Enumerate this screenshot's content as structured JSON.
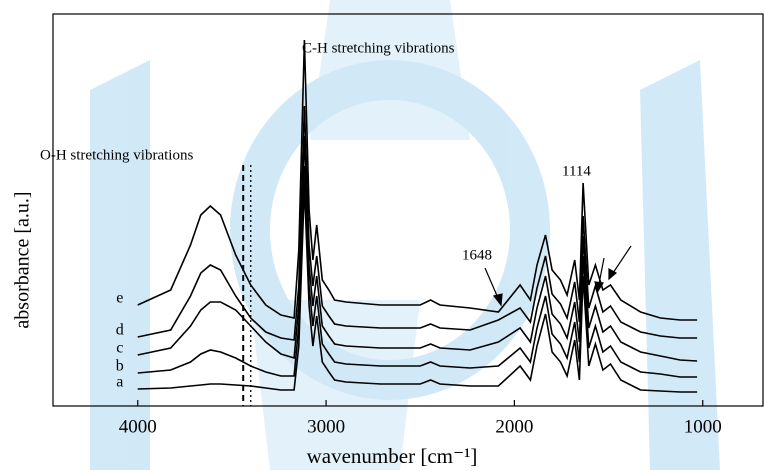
{
  "chart_data": {
    "type": "line",
    "x_label": "wavenumber [cm⁻¹]",
    "y_label": "absorbance [a.u.]",
    "annotations": [
      "C-H stretching vibrations",
      "O-H stretching vibrations",
      "1114",
      "1648"
    ],
    "xlim": [
      4450,
      680
    ],
    "xticks": [
      4000,
      3000,
      2000,
      1000
    ],
    "ylim": [
      0,
      392
    ],
    "vlines": [
      {
        "x": 3440,
        "style": "dashed"
      },
      {
        "x": 3400,
        "style": "dotted"
      }
    ],
    "x": [
      4000,
      3825,
      3720,
      3665,
      3615,
      3560,
      3480,
      3400,
      3320,
      3240,
      3170,
      3145,
      3115,
      3090,
      3070,
      3050,
      3020,
      2985,
      2955,
      2895,
      2710,
      2500,
      2445,
      2395,
      2235,
      2085,
      1970,
      1915,
      1880,
      1835,
      1800,
      1755,
      1720,
      1680,
      1655,
      1635,
      1605,
      1570,
      1530,
      1490,
      1435,
      1330,
      1225,
      1120,
      1030
    ],
    "series": [
      {
        "name": "a",
        "color": "#000000",
        "values": [
          17,
          18,
          20,
          21,
          22,
          22,
          21,
          20,
          18,
          16,
          16,
          60,
          220,
          100,
          60,
          90,
          44,
          34,
          26,
          24,
          22,
          22,
          26,
          22,
          20,
          20,
          40,
          26,
          60,
          92,
          54,
          44,
          30,
          66,
          26,
          130,
          40,
          62,
          36,
          42,
          26,
          16,
          15,
          14,
          14
        ]
      },
      {
        "name": "b",
        "color": "#000000",
        "values": [
          33,
          36,
          44,
          52,
          56,
          54,
          48,
          40,
          34,
          30,
          30,
          80,
          240,
          120,
          80,
          110,
          62,
          52,
          44,
          42,
          40,
          40,
          44,
          40,
          38,
          40,
          58,
          44,
          78,
          110,
          72,
          62,
          48,
          84,
          44,
          150,
          58,
          80,
          54,
          60,
          44,
          34,
          32,
          29,
          29
        ]
      },
      {
        "name": "c",
        "color": "#000000",
        "values": [
          51,
          58,
          80,
          96,
          104,
          104,
          96,
          80,
          64,
          52,
          48,
          100,
          270,
          140,
          100,
          130,
          80,
          70,
          62,
          60,
          58,
          58,
          62,
          58,
          56,
          64,
          78,
          64,
          98,
          130,
          92,
          82,
          68,
          104,
          64,
          170,
          78,
          100,
          74,
          80,
          64,
          54,
          50,
          46,
          45
        ]
      },
      {
        "name": "d",
        "color": "#000000",
        "values": [
          69,
          76,
          110,
          133,
          141,
          136,
          110,
          88,
          74,
          68,
          66,
          120,
          300,
          160,
          120,
          150,
          100,
          90,
          82,
          80,
          78,
          78,
          82,
          78,
          76,
          86,
          98,
          84,
          118,
          150,
          112,
          102,
          88,
          124,
          84,
          190,
          98,
          120,
          94,
          100,
          84,
          74,
          70,
          68,
          68
        ]
      },
      {
        "name": "e",
        "color": "#000000",
        "values": [
          101,
          116,
          161,
          191,
          200,
          191,
          151,
          121,
          101,
          91,
          88,
          156,
          366,
          196,
          146,
          181,
          126,
          116,
          106,
          104,
          101,
          101,
          106,
          101,
          98,
          94,
          121,
          106,
          141,
          171,
          136,
          126,
          111,
          146,
          106,
          223,
          121,
          141,
          116,
          121,
          106,
          94,
          88,
          86,
          86
        ]
      }
    ]
  }
}
